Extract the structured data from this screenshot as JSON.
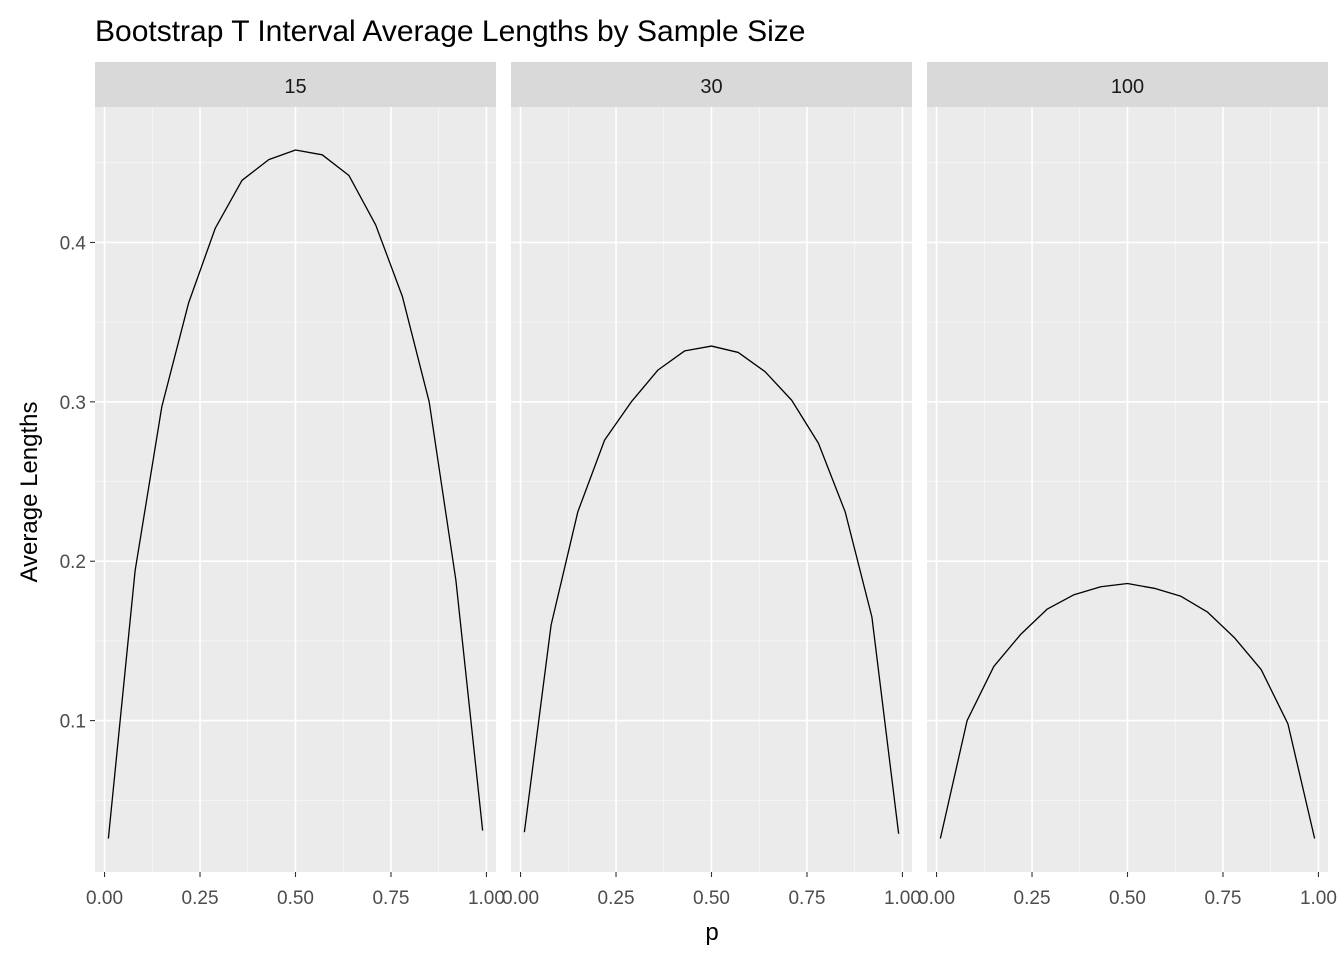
{
  "chart_data": {
    "type": "line",
    "title": "Bootstrap T Interval Average Lengths by Sample Size",
    "xlabel": "p",
    "ylabel": "Average Lengths",
    "xlim": [
      -0.025,
      1.025
    ],
    "ylim": [
      0.005,
      0.485
    ],
    "x_ticks": [
      0.0,
      0.25,
      0.5,
      0.75,
      1.0
    ],
    "x_tick_labels": [
      "0.00",
      "0.25",
      "0.50",
      "0.75",
      "1.00"
    ],
    "y_ticks": [
      0.1,
      0.2,
      0.3,
      0.4
    ],
    "y_tick_labels": [
      "0.1",
      "0.2",
      "0.3",
      "0.4"
    ],
    "grid": true,
    "legend": "none",
    "colors": {
      "panel_background": "#ebebeb",
      "grid_major": "#ffffff",
      "strip_background": "#d9d9d9",
      "line": "#000000"
    },
    "x": [
      0.01,
      0.08,
      0.15,
      0.22,
      0.29,
      0.36,
      0.43,
      0.5,
      0.57,
      0.64,
      0.71,
      0.78,
      0.85,
      0.92,
      0.99
    ],
    "facets": [
      {
        "label": "15",
        "values": [
          0.026,
          0.194,
          0.297,
          0.362,
          0.409,
          0.439,
          0.452,
          0.458,
          0.455,
          0.442,
          0.411,
          0.366,
          0.3,
          0.188,
          0.031
        ]
      },
      {
        "label": "30",
        "values": [
          0.03,
          0.16,
          0.231,
          0.276,
          0.3,
          0.32,
          0.332,
          0.335,
          0.331,
          0.319,
          0.301,
          0.274,
          0.231,
          0.165,
          0.029
        ]
      },
      {
        "label": "100",
        "values": [
          0.026,
          0.1,
          0.134,
          0.154,
          0.17,
          0.179,
          0.184,
          0.186,
          0.183,
          0.178,
          0.168,
          0.152,
          0.132,
          0.098,
          0.026
        ]
      }
    ]
  }
}
